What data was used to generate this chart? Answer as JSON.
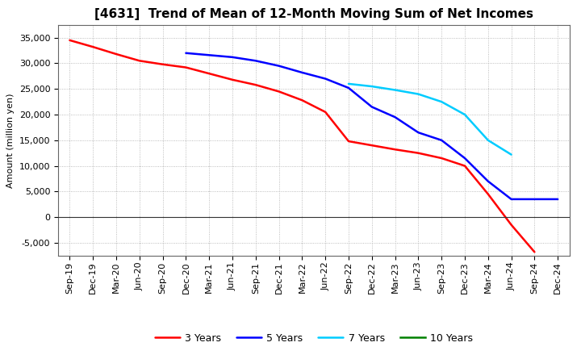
{
  "title": "[4631]  Trend of Mean of 12-Month Moving Sum of Net Incomes",
  "ylabel": "Amount (million yen)",
  "background_color": "#ffffff",
  "grid_color": "#aaaaaa",
  "x_labels": [
    "Sep-19",
    "Dec-19",
    "Mar-20",
    "Jun-20",
    "Sep-20",
    "Dec-20",
    "Mar-21",
    "Jun-21",
    "Sep-21",
    "Dec-21",
    "Mar-22",
    "Jun-22",
    "Sep-22",
    "Dec-22",
    "Mar-23",
    "Jun-23",
    "Sep-23",
    "Dec-23",
    "Mar-24",
    "Jun-24",
    "Sep-24",
    "Dec-24"
  ],
  "ylim": [
    -7500,
    37500
  ],
  "yticks": [
    -5000,
    0,
    5000,
    10000,
    15000,
    20000,
    25000,
    30000,
    35000
  ],
  "title_fontsize": 11,
  "axis_fontsize": 8,
  "legend_fontsize": 9,
  "series": [
    {
      "label": "3 Years",
      "color": "#ff0000",
      "x": [
        0,
        1,
        2,
        3,
        4,
        5,
        6,
        7,
        8,
        9,
        10,
        11,
        12,
        13,
        14,
        15,
        16,
        17,
        18,
        19,
        20
      ],
      "y": [
        34500,
        33200,
        31800,
        30500,
        29800,
        29200,
        28000,
        26800,
        25800,
        24500,
        22800,
        20500,
        14800,
        14000,
        13200,
        12500,
        11500,
        10000,
        4500,
        -1500,
        -6800
      ]
    },
    {
      "label": "5 Years",
      "color": "#0000ff",
      "x": [
        5,
        6,
        7,
        8,
        9,
        10,
        11,
        12,
        13,
        14,
        15,
        16,
        17,
        18,
        19,
        20,
        21
      ],
      "y": [
        32000,
        31600,
        31200,
        30500,
        29500,
        28200,
        27000,
        25200,
        21500,
        19500,
        16500,
        15000,
        11500,
        7000,
        3500,
        3500,
        3500
      ]
    },
    {
      "label": "7 Years",
      "color": "#00ccff",
      "x": [
        12,
        13,
        14,
        15,
        16,
        17,
        18,
        19
      ],
      "y": [
        26000,
        25500,
        24800,
        24000,
        22500,
        20000,
        15000,
        12200
      ]
    },
    {
      "label": "10 Years",
      "color": "#008000",
      "x": [],
      "y": []
    }
  ]
}
